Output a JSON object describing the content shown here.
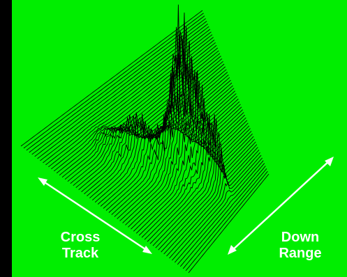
{
  "labels": {
    "cross_track_line1": "Cross",
    "cross_track_line2": "Track",
    "down_range_line1": "Down",
    "down_range_line2": "Range"
  },
  "colors": {
    "background": "#00ee00",
    "frame": "#000000",
    "trace": "#000000",
    "arrow": "#ffffff",
    "label": "#ffffff"
  }
}
